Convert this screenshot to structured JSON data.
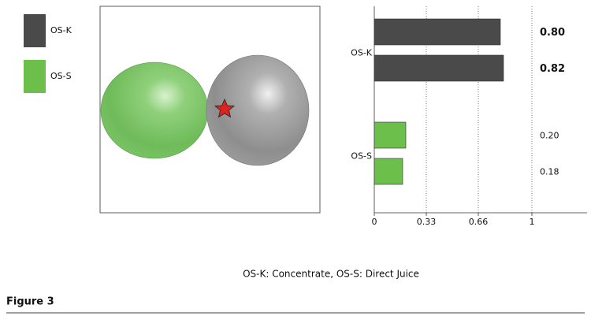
{
  "chart_data": {
    "type": "bar",
    "orientation": "horizontal",
    "categories": [
      "OS-K",
      "OS-S"
    ],
    "colors": [
      "#4a4a4a",
      "#6cbf4a"
    ],
    "values": [
      [
        0.8,
        0.82
      ],
      [
        0.2,
        0.18
      ]
    ],
    "value_labels": [
      [
        "0.80",
        "0.82"
      ],
      [
        "0.20",
        "0.18"
      ]
    ],
    "xlim": [
      0,
      1.35
    ],
    "xticks": [
      0,
      0.33,
      0.66,
      1
    ],
    "grid": true,
    "caption": "OS-K: Concentrate, OS-S: Direct Juice",
    "figure_label": "Figure 3"
  }
}
